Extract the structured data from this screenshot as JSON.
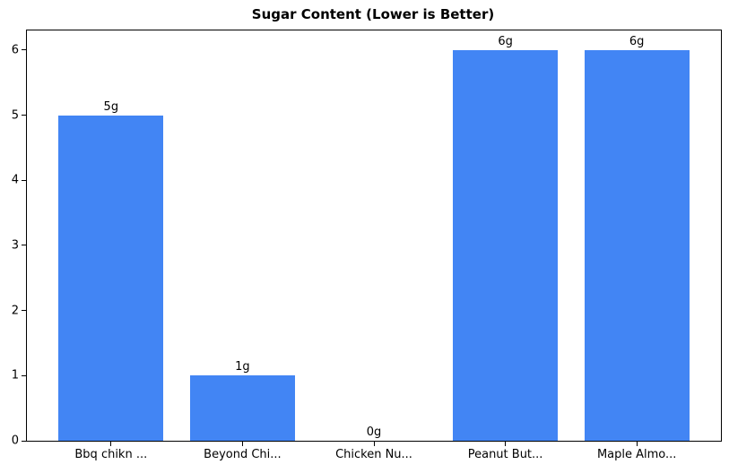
{
  "chart_data": {
    "type": "bar",
    "title": "Sugar Content (Lower is Better)",
    "categories": [
      "Bbq chikn ...",
      "Beyond Chi...",
      "Chicken Nu...",
      "Peanut But...",
      "Maple Almo..."
    ],
    "values": [
      5,
      1,
      0,
      6,
      6
    ],
    "bar_labels": [
      "5g",
      "1g",
      "0g",
      "6g",
      "6g"
    ],
    "xlabel": "",
    "ylabel": "",
    "yticks": [
      0,
      1,
      2,
      3,
      4,
      5,
      6
    ],
    "ylim": [
      0,
      6.3
    ],
    "bar_color": "#4285f4",
    "axis_color": "#000000",
    "background_color": "#ffffff",
    "grid": false,
    "legend_position": "none"
  }
}
